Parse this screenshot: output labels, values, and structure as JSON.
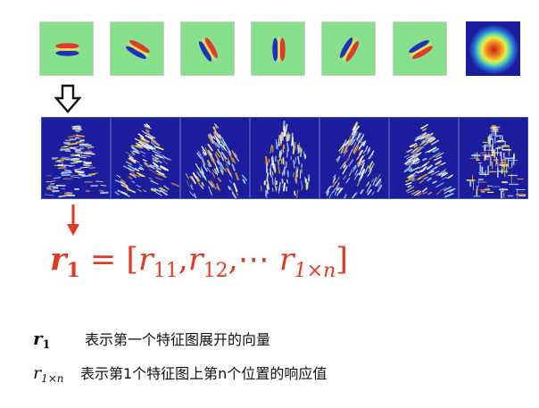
{
  "filters": [
    {
      "angle": 0,
      "kind": "gabor"
    },
    {
      "angle": 30,
      "kind": "gabor"
    },
    {
      "angle": 60,
      "kind": "gabor"
    },
    {
      "angle": 90,
      "kind": "gabor"
    },
    {
      "angle": 120,
      "kind": "gabor"
    },
    {
      "angle": 150,
      "kind": "gabor"
    },
    {
      "angle": 0,
      "kind": "gaussian"
    }
  ],
  "feature_maps": [
    {
      "index": 1
    },
    {
      "index": 2
    },
    {
      "index": 3
    },
    {
      "index": 4
    },
    {
      "index": 5
    },
    {
      "index": 6
    },
    {
      "index": 7
    }
  ],
  "formula": {
    "lhs_base": "r",
    "lhs_sub": "1",
    "equals": "=",
    "open": "[",
    "t1_base": "r",
    "t1_sub": "11",
    "comma1": ",",
    "t2_base": "r",
    "t2_sub": "12",
    "comma2": ",",
    "dots": "⋯",
    "t3_base": "r",
    "t3_sub": "1×n",
    "close": "]"
  },
  "definitions": [
    {
      "sym_base": "r",
      "sym_sub": "1",
      "text": "表示第一个特征图展开的向量"
    },
    {
      "sym_base": "r",
      "sym_sub": "1×n",
      "text": "表示第1个特征图上第n个位置的响应值"
    }
  ],
  "colors": {
    "filter_bg": "#86e08c",
    "map_bg": "#1b1d9c",
    "accent_red": "#e03a24"
  }
}
